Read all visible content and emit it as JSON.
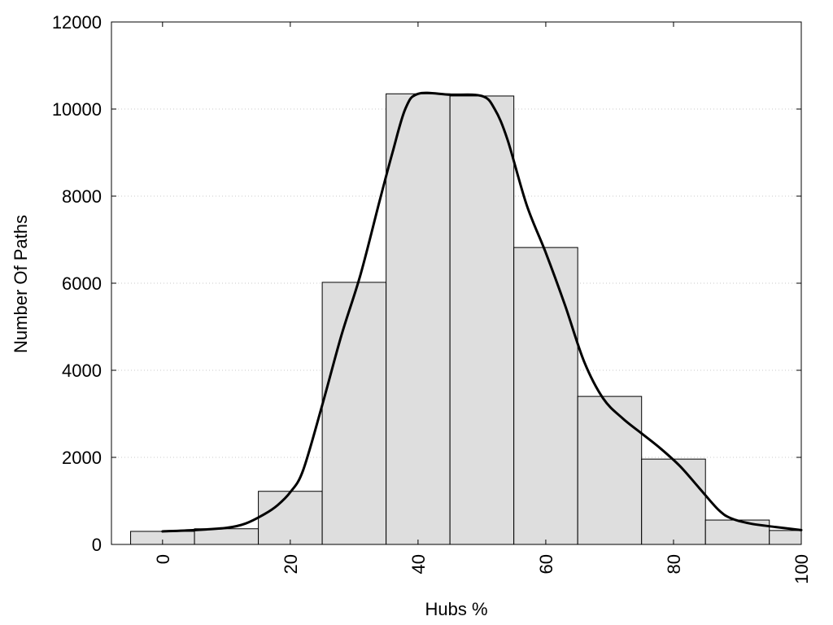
{
  "chart_data": {
    "type": "bar",
    "title": "",
    "xlabel": "Hubs %",
    "ylabel": "Number Of Paths",
    "xlim": [
      -8,
      100
    ],
    "ylim": [
      0,
      12000
    ],
    "x_ticks": [
      0,
      20,
      40,
      60,
      80,
      100
    ],
    "y_ticks": [
      0,
      2000,
      4000,
      6000,
      8000,
      10000,
      12000
    ],
    "grid": "horizontal dotted",
    "bar_fill": "#dedede",
    "bar_stroke": "#000000",
    "curve_color": "#000000",
    "bins": [
      {
        "x": 0,
        "value": 300
      },
      {
        "x": 10,
        "value": 360
      },
      {
        "x": 20,
        "value": 1220
      },
      {
        "x": 30,
        "value": 6020
      },
      {
        "x": 40,
        "value": 10350
      },
      {
        "x": 50,
        "value": 10300
      },
      {
        "x": 60,
        "value": 6820
      },
      {
        "x": 70,
        "value": 3400
      },
      {
        "x": 80,
        "value": 1960
      },
      {
        "x": 90,
        "value": 560
      },
      {
        "x": 100,
        "value": 320
      }
    ],
    "bin_width": 10,
    "curve": [
      [
        0,
        300
      ],
      [
        5,
        330
      ],
      [
        10,
        380
      ],
      [
        13,
        480
      ],
      [
        16,
        700
      ],
      [
        18,
        900
      ],
      [
        20,
        1200
      ],
      [
        22,
        1700
      ],
      [
        25,
        3200
      ],
      [
        28,
        4800
      ],
      [
        31,
        6200
      ],
      [
        34,
        7900
      ],
      [
        36,
        9000
      ],
      [
        38,
        10000
      ],
      [
        40,
        10350
      ],
      [
        45,
        10330
      ],
      [
        50,
        10300
      ],
      [
        52,
        10000
      ],
      [
        54,
        9300
      ],
      [
        57,
        7800
      ],
      [
        60,
        6700
      ],
      [
        63,
        5500
      ],
      [
        66,
        4200
      ],
      [
        69,
        3350
      ],
      [
        72,
        2900
      ],
      [
        75,
        2550
      ],
      [
        78,
        2200
      ],
      [
        81,
        1800
      ],
      [
        84,
        1300
      ],
      [
        87,
        800
      ],
      [
        89,
        600
      ],
      [
        92,
        480
      ],
      [
        96,
        400
      ],
      [
        100,
        330
      ]
    ]
  }
}
